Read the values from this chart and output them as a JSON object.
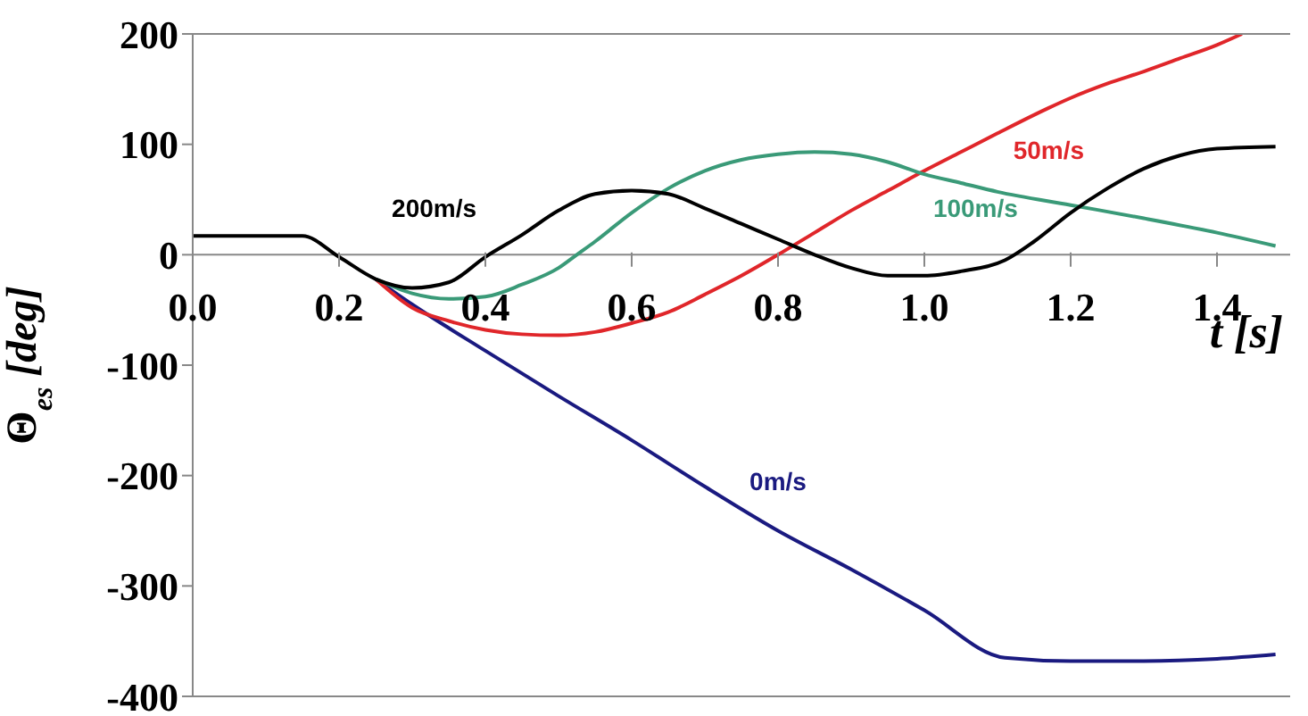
{
  "chart_data": {
    "type": "line",
    "xlabel": "t [s]",
    "ylabel": "Θ$_{es}$ [deg]",
    "xlim": [
      0,
      1.5
    ],
    "ylim": [
      -400,
      200
    ],
    "xticks": [
      {
        "value": 0,
        "label": "0.0"
      },
      {
        "value": 0.2,
        "label": "0.2"
      },
      {
        "value": 0.4,
        "label": "0.4"
      },
      {
        "value": 0.6,
        "label": "0.6"
      },
      {
        "value": 0.8,
        "label": "0.8"
      },
      {
        "value": 1,
        "label": "1.0"
      },
      {
        "value": 1.2,
        "label": "1.2"
      },
      {
        "value": 1.4,
        "label": "1.4"
      }
    ],
    "yticks": [
      -400,
      -300,
      -200,
      -100,
      0,
      100,
      200
    ],
    "marker": "none",
    "line_style": "solid",
    "series": [
      {
        "name": "0m/s",
        "color": "#1a1a80",
        "x": [
          0.25,
          0.3,
          0.4,
          0.5,
          0.6,
          0.7,
          0.8,
          0.9,
          1.0,
          1.11,
          1.2,
          1.3,
          1.4,
          1.48
        ],
        "values": [
          -22,
          -45,
          -87,
          -128,
          -168,
          -210,
          -250,
          -285,
          -322,
          -365,
          -368,
          -368,
          -366,
          -362
        ]
      },
      {
        "name": "50m/s",
        "color": "#e0262a",
        "x": [
          0.25,
          0.3,
          0.35,
          0.4,
          0.45,
          0.5,
          0.55,
          0.6,
          0.65,
          0.7,
          0.75,
          0.8,
          0.85,
          0.9,
          0.95,
          1.0,
          1.05,
          1.1,
          1.17,
          1.2,
          1.25,
          1.3,
          1.35,
          1.4,
          1.434
        ],
        "values": [
          -22,
          -48,
          -60,
          -68,
          -72,
          -73,
          -70,
          -62,
          -52,
          -36,
          -19,
          0,
          20,
          40,
          58,
          76,
          93,
          110,
          133,
          142,
          155,
          166,
          178,
          190,
          200
        ]
      },
      {
        "name": "100m/s",
        "color": "#3a9a78",
        "x": [
          0.25,
          0.3,
          0.35,
          0.4,
          0.45,
          0.5,
          0.525,
          0.55,
          0.6,
          0.65,
          0.7,
          0.75,
          0.8,
          0.85,
          0.9,
          0.95,
          1.0,
          1.05,
          1.1,
          1.2,
          1.3,
          1.4,
          1.48
        ],
        "values": [
          -22,
          -35,
          -40,
          -38,
          -27,
          -12,
          0,
          12,
          38,
          60,
          76,
          86,
          91,
          93,
          91,
          84,
          73,
          65,
          57,
          45,
          33,
          20,
          8
        ]
      },
      {
        "name": "200m/s",
        "color": "#000000",
        "x": [
          0,
          0.15,
          0.2,
          0.25,
          0.3,
          0.35,
          0.4,
          0.45,
          0.5,
          0.55,
          0.6,
          0.65,
          0.7,
          0.75,
          0.8,
          0.85,
          0.9,
          0.95,
          1.0,
          1.05,
          1.11,
          1.15,
          1.2,
          1.25,
          1.3,
          1.35,
          1.4,
          1.48
        ],
        "values": [
          17,
          17,
          -2,
          -22,
          -30,
          -25,
          -2,
          18,
          40,
          55,
          58,
          55,
          42,
          28,
          14,
          0,
          -12,
          -19,
          -19,
          -15,
          -5,
          12,
          38,
          60,
          78,
          90,
          96,
          98
        ]
      }
    ]
  }
}
